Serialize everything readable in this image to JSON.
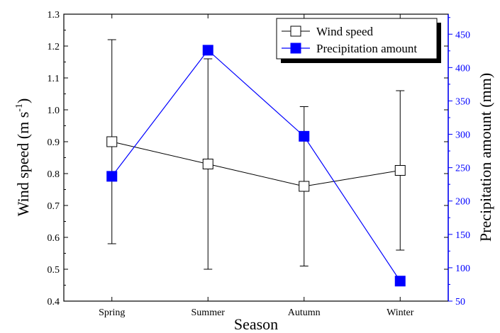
{
  "chart_data": {
    "type": "line",
    "categories": [
      "Spring",
      "Summer",
      "Autumn",
      "Winter"
    ],
    "xlabel": "Season",
    "ylabel_left": {
      "main": "Wind speed (m s",
      "sup": "-1",
      "end": ")"
    },
    "ylabel_right": "Precipitation amount (mm)",
    "y_left": {
      "lim": [
        0.4,
        1.3
      ],
      "ticks": [
        "0.4",
        "0.5",
        "0.6",
        "0.7",
        "0.8",
        "0.9",
        "1.0",
        "1.1",
        "1.2",
        "1.3"
      ]
    },
    "y_right": {
      "lim": [
        50,
        480
      ],
      "ticks": [
        "50",
        "100",
        "150",
        "200",
        "250",
        "300",
        "350",
        "400",
        "450"
      ]
    },
    "series": [
      {
        "name": "Wind speed",
        "axis": "left",
        "color": "#000000",
        "marker": "open-square",
        "values": [
          0.9,
          0.83,
          0.76,
          0.81
        ],
        "error_low": [
          0.58,
          0.5,
          0.51,
          0.56
        ],
        "error_high": [
          1.22,
          1.16,
          1.01,
          1.06
        ]
      },
      {
        "name": "Precipitation amount",
        "axis": "right",
        "color": "#0000ff",
        "marker": "filled-square",
        "values": [
          237,
          426,
          297,
          80
        ]
      }
    ],
    "legend_position": "top-right",
    "grid": false
  }
}
